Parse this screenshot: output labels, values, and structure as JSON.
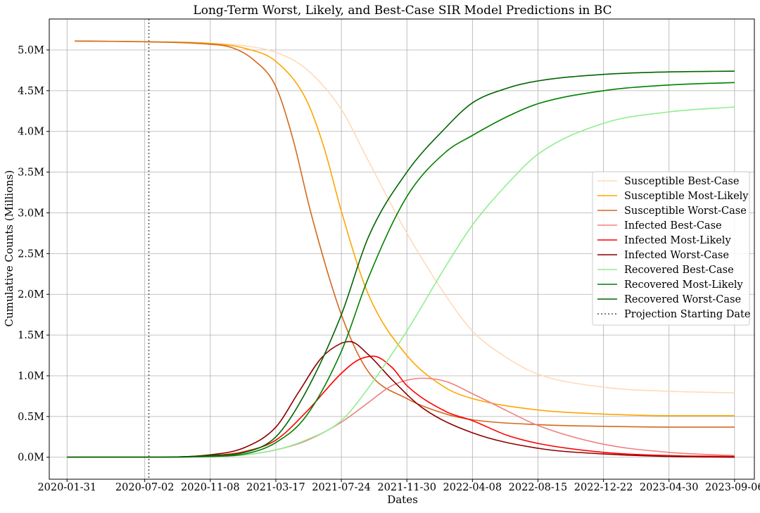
{
  "chart_data": {
    "type": "line",
    "title": "Long-Term Worst, Likely, and Best-Case SIR Model Predictions in BC",
    "xlabel": "Dates",
    "ylabel": "Cumulative Counts (Millions)",
    "x_ticks": [
      "2020-01-31",
      "2020-07-02",
      "2020-11-08",
      "2021-03-17",
      "2021-07-24",
      "2021-11-30",
      "2022-04-08",
      "2022-08-15",
      "2022-12-22",
      "2023-04-30",
      "2023-09-06"
    ],
    "y_ticks": [
      "0.0M",
      "0.5M",
      "1.0M",
      "1.5M",
      "2.0M",
      "2.5M",
      "3.0M",
      "3.5M",
      "4.0M",
      "4.5M",
      "5.0M"
    ],
    "xlim": [
      "2019-12-27",
      "2023-10-15"
    ],
    "ylim": [
      -0.27,
      5.38
    ],
    "y_unit": "millions",
    "grid": true,
    "legend_position": "center-right",
    "projection_start_date": "2020-07-10",
    "series": [
      {
        "name": "Susceptible Best-Case",
        "color": "#ffdab9",
        "points": [
          [
            "2020-02-15",
            5.11
          ],
          [
            "2020-07-10",
            5.1
          ],
          [
            "2020-11-08",
            5.08
          ],
          [
            "2021-01-15",
            5.05
          ],
          [
            "2021-03-17",
            4.97
          ],
          [
            "2021-05-15",
            4.77
          ],
          [
            "2021-07-24",
            4.27
          ],
          [
            "2021-09-15",
            3.64
          ],
          [
            "2021-11-30",
            2.75
          ],
          [
            "2022-02-15",
            1.98
          ],
          [
            "2022-04-08",
            1.55
          ],
          [
            "2022-06-15",
            1.22
          ],
          [
            "2022-08-15",
            1.02
          ],
          [
            "2022-12-22",
            0.86
          ],
          [
            "2023-04-30",
            0.81
          ],
          [
            "2023-09-06",
            0.79
          ]
        ]
      },
      {
        "name": "Susceptible Most-Likely",
        "color": "#ffa500",
        "points": [
          [
            "2020-02-15",
            5.11
          ],
          [
            "2020-07-10",
            5.1
          ],
          [
            "2020-11-08",
            5.08
          ],
          [
            "2021-01-15",
            5.02
          ],
          [
            "2021-03-17",
            4.86
          ],
          [
            "2021-05-15",
            4.4
          ],
          [
            "2021-06-20",
            3.8
          ],
          [
            "2021-07-24",
            3.02
          ],
          [
            "2021-09-15",
            2.0
          ],
          [
            "2021-11-30",
            1.25
          ],
          [
            "2022-02-15",
            0.85
          ],
          [
            "2022-04-08",
            0.72
          ],
          [
            "2022-08-15",
            0.58
          ],
          [
            "2022-12-22",
            0.53
          ],
          [
            "2023-04-30",
            0.51
          ],
          [
            "2023-09-06",
            0.51
          ]
        ]
      },
      {
        "name": "Susceptible Worst-Case",
        "color": "#d2691e",
        "points": [
          [
            "2020-02-15",
            5.11
          ],
          [
            "2020-07-10",
            5.1
          ],
          [
            "2020-11-08",
            5.07
          ],
          [
            "2020-12-20",
            5.03
          ],
          [
            "2021-02-01",
            4.88
          ],
          [
            "2021-03-17",
            4.55
          ],
          [
            "2021-04-20",
            3.9
          ],
          [
            "2021-05-25",
            3.0
          ],
          [
            "2021-07-24",
            1.75
          ],
          [
            "2021-09-15",
            1.05
          ],
          [
            "2021-11-30",
            0.72
          ],
          [
            "2022-02-15",
            0.53
          ],
          [
            "2022-04-08",
            0.46
          ],
          [
            "2022-08-15",
            0.4
          ],
          [
            "2022-12-22",
            0.38
          ],
          [
            "2023-04-30",
            0.37
          ],
          [
            "2023-09-06",
            0.37
          ]
        ]
      },
      {
        "name": "Infected Best-Case",
        "color": "#f08080",
        "points": [
          [
            "2020-01-31",
            0.0
          ],
          [
            "2020-07-10",
            0.0
          ],
          [
            "2020-11-08",
            0.01
          ],
          [
            "2021-01-15",
            0.03
          ],
          [
            "2021-03-17",
            0.09
          ],
          [
            "2021-05-15",
            0.2
          ],
          [
            "2021-07-24",
            0.43
          ],
          [
            "2021-09-15",
            0.67
          ],
          [
            "2021-11-01",
            0.88
          ],
          [
            "2021-12-31",
            0.97
          ],
          [
            "2022-02-15",
            0.93
          ],
          [
            "2022-04-08",
            0.78
          ],
          [
            "2022-06-15",
            0.57
          ],
          [
            "2022-08-15",
            0.39
          ],
          [
            "2022-12-22",
            0.16
          ],
          [
            "2023-04-30",
            0.06
          ],
          [
            "2023-09-06",
            0.02
          ]
        ]
      },
      {
        "name": "Infected Most-Likely",
        "color": "#ff0000",
        "points": [
          [
            "2020-01-31",
            0.0
          ],
          [
            "2020-07-10",
            0.0
          ],
          [
            "2020-11-08",
            0.02
          ],
          [
            "2021-01-15",
            0.07
          ],
          [
            "2021-03-17",
            0.21
          ],
          [
            "2021-05-15",
            0.55
          ],
          [
            "2021-07-24",
            1.03
          ],
          [
            "2021-08-25",
            1.19
          ],
          [
            "2021-09-25",
            1.24
          ],
          [
            "2021-11-01",
            1.1
          ],
          [
            "2021-11-30",
            0.88
          ],
          [
            "2022-02-15",
            0.56
          ],
          [
            "2022-04-08",
            0.45
          ],
          [
            "2022-06-15",
            0.27
          ],
          [
            "2022-08-15",
            0.17
          ],
          [
            "2022-12-22",
            0.06
          ],
          [
            "2023-04-30",
            0.02
          ],
          [
            "2023-09-06",
            0.01
          ]
        ]
      },
      {
        "name": "Infected Worst-Case",
        "color": "#8b0000",
        "points": [
          [
            "2020-01-31",
            0.0
          ],
          [
            "2020-07-10",
            0.0
          ],
          [
            "2020-11-08",
            0.03
          ],
          [
            "2021-01-15",
            0.12
          ],
          [
            "2021-03-17",
            0.37
          ],
          [
            "2021-05-01",
            0.8
          ],
          [
            "2021-06-15",
            1.22
          ],
          [
            "2021-07-24",
            1.4
          ],
          [
            "2021-08-10",
            1.42
          ],
          [
            "2021-09-15",
            1.26
          ],
          [
            "2021-11-01",
            0.95
          ],
          [
            "2022-01-01",
            0.6
          ],
          [
            "2022-04-08",
            0.3
          ],
          [
            "2022-08-15",
            0.11
          ],
          [
            "2022-12-22",
            0.04
          ],
          [
            "2023-04-30",
            0.01
          ],
          [
            "2023-09-06",
            0.0
          ]
        ]
      },
      {
        "name": "Recovered Best-Case",
        "color": "#90ee90",
        "points": [
          [
            "2020-01-31",
            0.0
          ],
          [
            "2020-07-10",
            0.0
          ],
          [
            "2020-11-08",
            0.01
          ],
          [
            "2021-01-15",
            0.03
          ],
          [
            "2021-03-17",
            0.09
          ],
          [
            "2021-05-15",
            0.21
          ],
          [
            "2021-07-24",
            0.45
          ],
          [
            "2021-09-15",
            0.85
          ],
          [
            "2021-11-30",
            1.55
          ],
          [
            "2022-02-15",
            2.35
          ],
          [
            "2022-04-08",
            2.85
          ],
          [
            "2022-06-15",
            3.35
          ],
          [
            "2022-08-15",
            3.72
          ],
          [
            "2022-12-22",
            4.1
          ],
          [
            "2023-04-30",
            4.24
          ],
          [
            "2023-09-06",
            4.3
          ]
        ]
      },
      {
        "name": "Recovered Most-Likely",
        "color": "#008000",
        "points": [
          [
            "2020-01-31",
            0.0
          ],
          [
            "2020-07-10",
            0.0
          ],
          [
            "2020-11-08",
            0.01
          ],
          [
            "2021-01-15",
            0.04
          ],
          [
            "2021-03-17",
            0.18
          ],
          [
            "2021-05-15",
            0.5
          ],
          [
            "2021-07-24",
            1.3
          ],
          [
            "2021-09-15",
            2.2
          ],
          [
            "2021-11-30",
            3.2
          ],
          [
            "2022-02-15",
            3.75
          ],
          [
            "2022-04-08",
            3.95
          ],
          [
            "2022-06-15",
            4.18
          ],
          [
            "2022-08-15",
            4.34
          ],
          [
            "2022-12-22",
            4.5
          ],
          [
            "2023-04-30",
            4.57
          ],
          [
            "2023-09-06",
            4.6
          ]
        ]
      },
      {
        "name": "Recovered Worst-Case",
        "color": "#006400",
        "points": [
          [
            "2020-01-31",
            0.0
          ],
          [
            "2020-07-10",
            0.0
          ],
          [
            "2020-11-08",
            0.02
          ],
          [
            "2021-01-15",
            0.06
          ],
          [
            "2021-03-17",
            0.25
          ],
          [
            "2021-05-15",
            0.8
          ],
          [
            "2021-07-24",
            1.75
          ],
          [
            "2021-09-15",
            2.7
          ],
          [
            "2021-11-30",
            3.5
          ],
          [
            "2022-02-15",
            4.05
          ],
          [
            "2022-04-08",
            4.35
          ],
          [
            "2022-06-15",
            4.53
          ],
          [
            "2022-08-15",
            4.62
          ],
          [
            "2022-12-22",
            4.7
          ],
          [
            "2023-04-30",
            4.73
          ],
          [
            "2023-09-06",
            4.74
          ]
        ]
      }
    ],
    "reference_line": {
      "name": "Projection Starting Date",
      "color": "#696969",
      "style": "dotted"
    }
  }
}
